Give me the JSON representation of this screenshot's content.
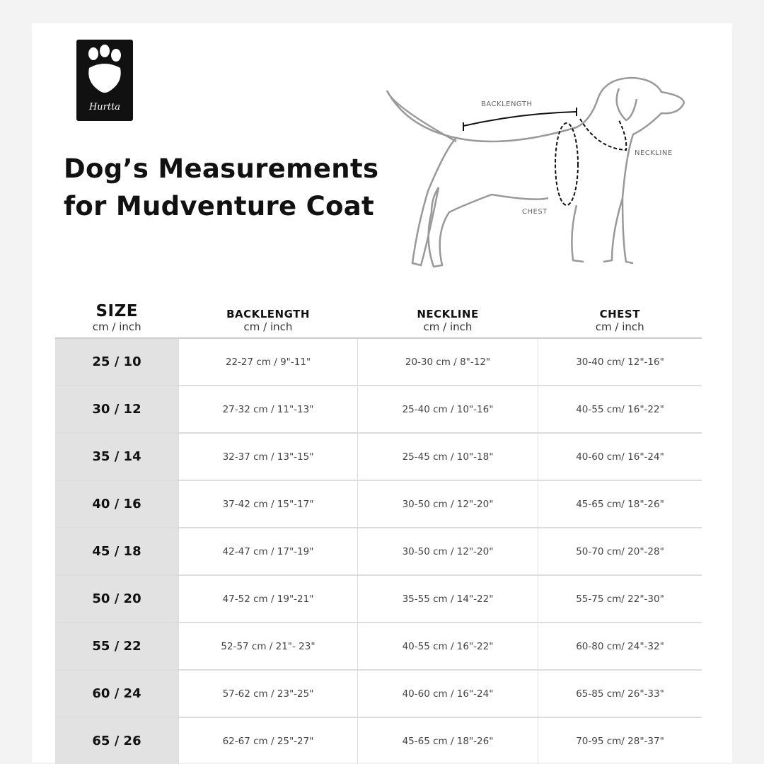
{
  "logo": {
    "brand": "Hurtta"
  },
  "title": {
    "line1": "Dog’s Measurements",
    "line2": "for Mudventure Coat"
  },
  "diagram": {
    "labels": {
      "backlength": "BACKLENGTH",
      "neckline": "NECKLINE",
      "chest": "CHEST"
    }
  },
  "table": {
    "headers": [
      {
        "label": "SIZE",
        "unit": "cm / inch"
      },
      {
        "label": "BACKLENGTH",
        "unit": "cm / inch"
      },
      {
        "label": "NECKLINE",
        "unit": "cm / inch"
      },
      {
        "label": "CHEST",
        "unit": "cm / inch"
      }
    ],
    "rows": [
      [
        "25 / 10",
        "22-27 cm / 9\"-11\"",
        "20-30 cm / 8\"-12\"",
        "30-40 cm/ 12\"-16\""
      ],
      [
        "30 / 12",
        "27-32 cm / 11\"-13\"",
        "25-40 cm / 10\"-16\"",
        "40-55 cm/ 16\"-22\""
      ],
      [
        "35 / 14",
        "32-37 cm / 13\"-15\"",
        "25-45 cm / 10\"-18\"",
        "40-60 cm/ 16\"-24\""
      ],
      [
        "40 / 16",
        "37-42 cm / 15\"-17\"",
        "30-50 cm / 12\"-20\"",
        "45-65 cm/ 18\"-26\""
      ],
      [
        "45 / 18",
        "42-47 cm / 17\"-19\"",
        "30-50 cm / 12\"-20\"",
        "50-70 cm/ 20\"-28\""
      ],
      [
        "50 / 20",
        "47-52 cm / 19\"-21\"",
        "35-55 cm / 14\"-22\"",
        "55-75 cm/ 22\"-30\""
      ],
      [
        "55 / 22",
        "52-57 cm / 21\"- 23\"",
        "40-55 cm / 16\"-22\"",
        "60-80 cm/ 24\"-32\""
      ],
      [
        "60 / 24",
        "57-62 cm / 23\"-25\"",
        "40-60 cm / 16\"-24\"",
        "65-85 cm/ 26\"-33\""
      ],
      [
        "65 / 26",
        "62-67 cm / 25\"-27\"",
        "45-65 cm / 18\"-26\"",
        "70-95 cm/ 28\"-37\""
      ]
    ]
  }
}
